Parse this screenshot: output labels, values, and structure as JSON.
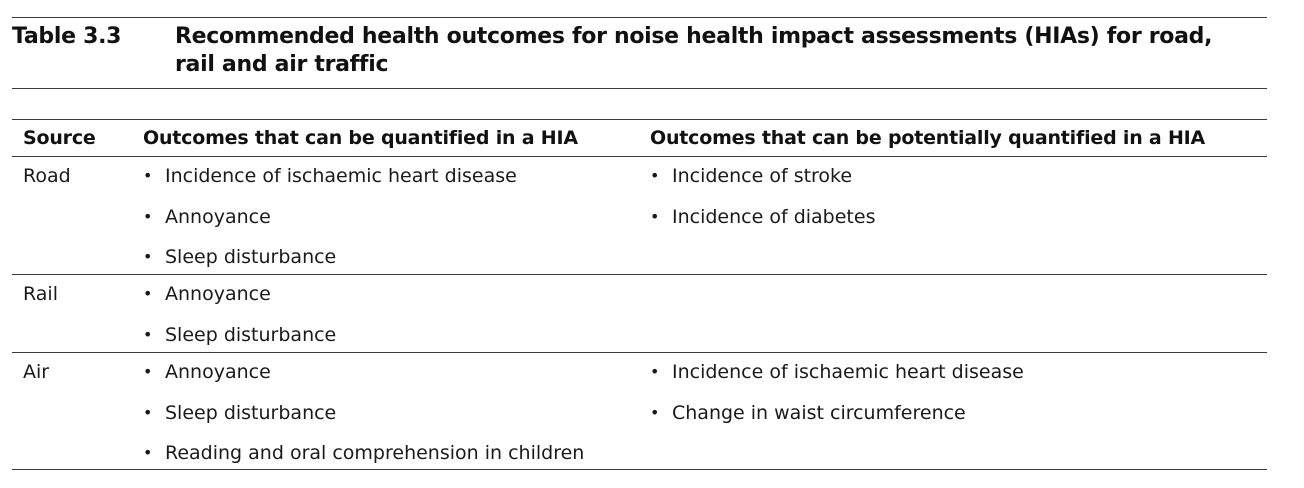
{
  "caption": {
    "label": "Table 3.3",
    "title": "Recommended health outcomes for noise health impact assessments (HIAs) for road, rail and air traffic"
  },
  "table": {
    "headers": {
      "source": "Source",
      "quantified": "Outcomes that can be quantified in a HIA",
      "potential": "Outcomes that can be potentially quantified in a HIA"
    },
    "rows": [
      {
        "source": "Road",
        "quantified": [
          "Incidence of ischaemic heart disease",
          "Annoyance",
          "Sleep disturbance"
        ],
        "potential": [
          "Incidence of stroke",
          "Incidence of diabetes"
        ]
      },
      {
        "source": "Rail",
        "quantified": [
          "Annoyance",
          "Sleep disturbance"
        ],
        "potential": []
      },
      {
        "source": "Air",
        "quantified": [
          "Annoyance",
          "Sleep disturbance",
          "Reading and oral comprehension in children"
        ],
        "potential": [
          "Incidence of ischaemic heart disease",
          "Change in waist circumference"
        ]
      }
    ]
  }
}
